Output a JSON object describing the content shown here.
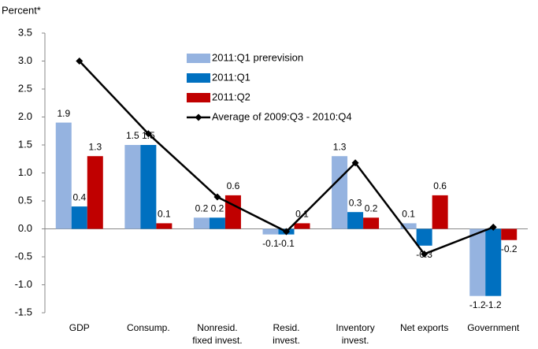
{
  "chart_data": {
    "type": "bar",
    "y_label": "Percent*",
    "categories": [
      [
        "GDP"
      ],
      [
        "Consump."
      ],
      [
        "Nonresid.",
        "fixed invest."
      ],
      [
        "Resid.",
        "invest."
      ],
      [
        "Inventory",
        "invest."
      ],
      [
        "Net exports"
      ],
      [
        "Government"
      ]
    ],
    "series": [
      {
        "name": "2011:Q1 prerevision",
        "color": "#95b3e0",
        "label_color": "#4f8fd0",
        "values": [
          1.9,
          1.5,
          0.2,
          -0.1,
          1.3,
          0.1,
          -1.2
        ]
      },
      {
        "name": "2011:Q1",
        "color": "#0070c0",
        "label_color": "#0070c0",
        "values": [
          0.4,
          1.5,
          0.2,
          -0.1,
          0.3,
          -0.3,
          -1.2
        ]
      },
      {
        "name": "2011:Q2",
        "color": "#c00000",
        "label_color": "#c00000",
        "values": [
          1.3,
          0.1,
          0.6,
          0.1,
          0.2,
          0.6,
          -0.2
        ]
      },
      {
        "name": "Average of 2009:Q3 - 2010:Q4",
        "type": "line",
        "color": "#000000",
        "values": [
          3.0,
          1.7,
          0.57,
          -0.05,
          1.18,
          -0.45,
          0.03
        ]
      }
    ],
    "ylim": [
      -1.5,
      3.5
    ],
    "yticks": [
      -1.5,
      {
        "value": -1,
        "label": "-1.0"
      },
      -0.5,
      {
        "value": 0,
        "label": "0.0"
      },
      0.5,
      {
        "value": 1,
        "label": "1.0"
      },
      1.5,
      {
        "value": 2,
        "label": "2.0"
      },
      2.5,
      {
        "value": 3,
        "label": "3.0"
      },
      3.5
    ],
    "grid": false
  }
}
